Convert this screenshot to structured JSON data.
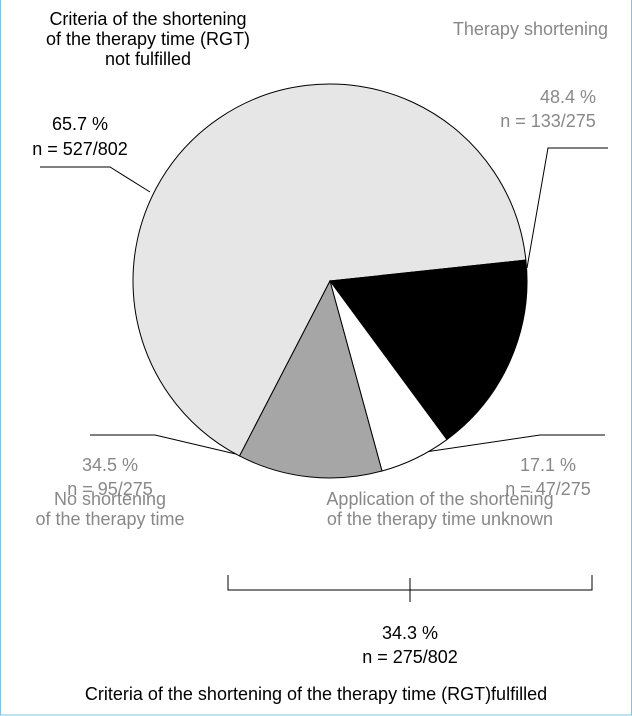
{
  "chart_data": {
    "type": "pie",
    "categories": [
      [
        "Criteria  of the shortening",
        "of the therapy time (RGT)",
        "not fulfilled"
      ],
      [
        "Therapy shortening"
      ],
      [
        "Application of the shortening",
        "of the therapy time unknown"
      ],
      [
        "No shortening",
        "of the therapy time"
      ]
    ],
    "values": [
      65.7,
      48.4,
      17.1,
      34.5
    ],
    "value_labels": [
      "65.7 %",
      "48.4 %",
      "17.1 %",
      "34.5 %"
    ],
    "counts": [
      527,
      133,
      47,
      95
    ],
    "count_labels": [
      "n = 527/802",
      "n = 133/275",
      "n = 47/275",
      "n = 95/275"
    ],
    "colors": [
      "#e6e6e6",
      "#000000",
      "#ffffff",
      "#a6a6a6"
    ],
    "group": {
      "value": 34.3,
      "value_label": "34.3 %",
      "count": 275,
      "count_label": "n = 275/802",
      "label": "Criteria  of the shortening of the therapy time (RGT)fulfilled"
    }
  }
}
